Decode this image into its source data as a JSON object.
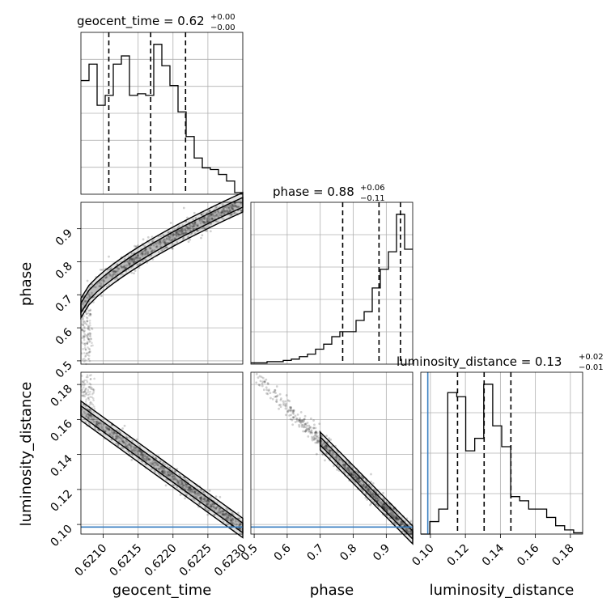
{
  "chart_data": {
    "type": "corner",
    "parameters": [
      "geocent_time",
      "phase",
      "luminosity_distance"
    ],
    "truth_color": "#3a7fc1",
    "panels": {
      "geocent_time": {
        "title": "geocent_time = 0.62",
        "title_sup": "+0.00",
        "title_sub": "−0.00",
        "range": [
          0.62068,
          0.623
        ],
        "quantiles": [
          0.62108,
          0.62168,
          0.62218
        ],
        "hist": [
          69,
          79,
          54,
          60,
          79,
          84,
          60,
          61,
          60,
          91,
          78,
          66,
          50,
          35,
          22,
          16,
          15,
          12,
          8,
          1
        ]
      },
      "phase": {
        "title": "phase = 0.88",
        "title_sup": "+0.06",
        "title_sub": "−0.11",
        "range": [
          0.49,
          0.98
        ],
        "quantiles": [
          0.768,
          0.878,
          0.943
        ],
        "hist": [
          1,
          1,
          2,
          2,
          3,
          4,
          6,
          8,
          12,
          16,
          22,
          26,
          26,
          35,
          42,
          61,
          76,
          90,
          120,
          92
        ]
      },
      "luminosity_distance": {
        "title": "luminosity_distance = 0.13",
        "title_sup": "+0.02",
        "title_sub": "−0.01",
        "range": [
          0.0945,
          0.187
        ],
        "truth": 0.0985,
        "quantiles": [
          0.1155,
          0.1307,
          0.146
        ],
        "hist": [
          0,
          3,
          6,
          34,
          33,
          20,
          23,
          36,
          26,
          21,
          9,
          8,
          6,
          6,
          4,
          2,
          1,
          0.3
        ]
      }
    },
    "x_ticks": {
      "geocent_time": [
        "0.6210",
        "0.6215",
        "0.6220",
        "0.6225",
        "0.6230"
      ],
      "phase": [
        "0.5",
        "0.6",
        "0.7",
        "0.8",
        "0.9"
      ],
      "luminosity_distance": [
        "0.10",
        "0.12",
        "0.14",
        "0.16",
        "0.18"
      ]
    },
    "y_ticks": {
      "phase": [
        "0.5",
        "0.6",
        "0.7",
        "0.8",
        "0.9"
      ],
      "luminosity_distance": [
        "0.10",
        "0.12",
        "0.14",
        "0.16",
        "0.18"
      ]
    },
    "axis_labels": {
      "geocent_time": "geocent_time",
      "phase": "phase",
      "luminosity_distance": "luminosity_distance"
    },
    "grid": true
  }
}
